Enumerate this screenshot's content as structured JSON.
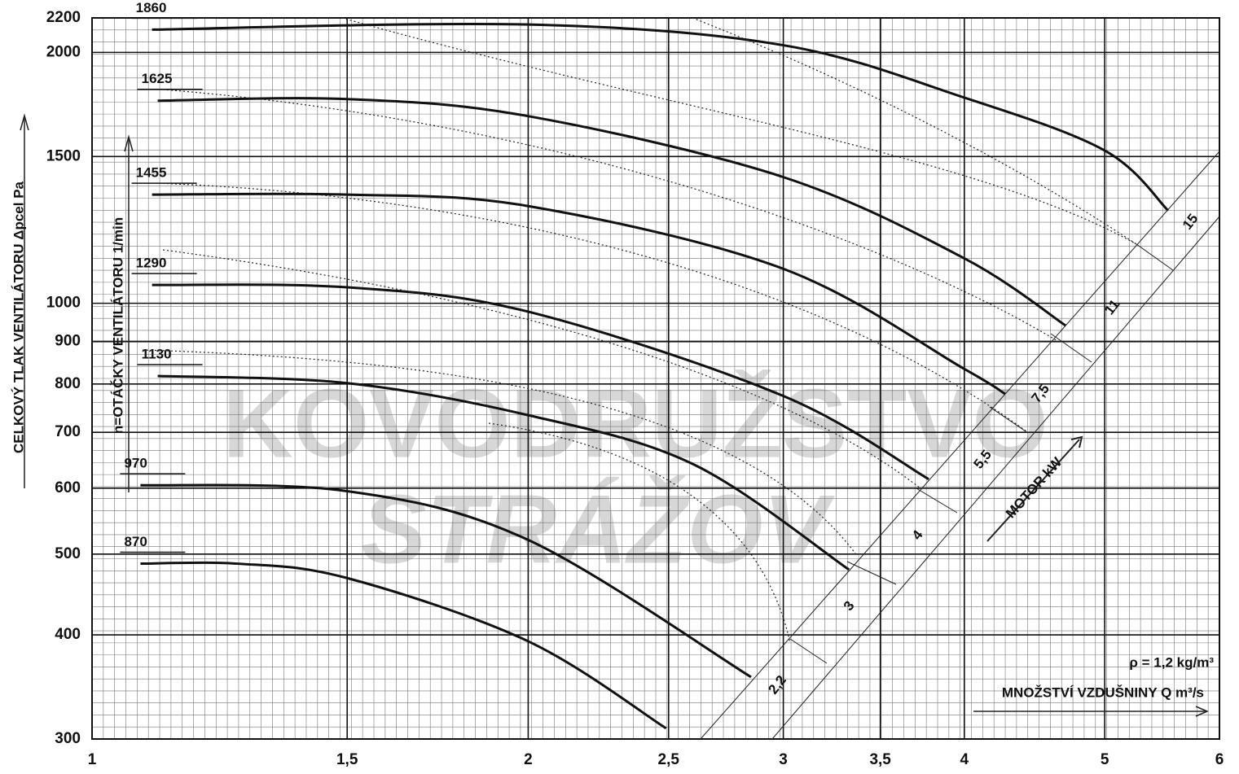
{
  "chart_data": {
    "type": "line",
    "log_x": true,
    "log_y": true,
    "grid": true,
    "y_label": "CELKOVÝ TLAK VENTILÁTORU  Δpcel Pa",
    "speed_label": "n=OTÁČKY VENTILÁTORU 1/min",
    "x_label": "MNOŽSTVÍ VZDUŠNINY Q  m³/s",
    "density_label": "ρ = 1,2 kg/m³",
    "motor_label": "MOTOR kW",
    "motor_sizes": [
      "2,2",
      "3",
      "4",
      "5,5",
      "7,5",
      "11",
      "15"
    ],
    "watermark": [
      "KOVODRUŽSTVO",
      "STRÁŽOV"
    ],
    "xlim": [
      1,
      6
    ],
    "ylim": [
      300,
      2200
    ],
    "xticks": [
      1,
      {
        "value": 1.5,
        "label": "1,5"
      },
      2,
      {
        "value": 2.5,
        "label": "2,5"
      },
      3,
      {
        "value": 3.5,
        "label": "3,5"
      },
      4,
      5,
      6
    ],
    "yticks": [
      300,
      400,
      500,
      600,
      700,
      800,
      900,
      1000,
      1500,
      2000,
      2200
    ],
    "series": [
      {
        "name": "1860",
        "color": "#111111",
        "x": [
          1.1,
          2.0,
          3.0,
          4.0,
          5.0,
          5.53
        ],
        "values": [
          2130,
          2160,
          2040,
          1765,
          1525,
          1292
        ]
      },
      {
        "name": "1625",
        "color": "#111111",
        "x": [
          1.11,
          1.5,
          2.0,
          3.0,
          4.0,
          4.7
        ],
        "values": [
          1750,
          1758,
          1677,
          1417,
          1132,
          940
        ]
      },
      {
        "name": "1455",
        "color": "#111111",
        "x": [
          1.1,
          1.5,
          2.0,
          3.0,
          4.0,
          4.27
        ],
        "values": [
          1350,
          1350,
          1308,
          1100,
          834,
          778
        ]
      },
      {
        "name": "1290",
        "color": "#111111",
        "x": [
          1.1,
          1.5,
          2.0,
          3.0,
          3.78
        ],
        "values": [
          1052,
          1045,
          977,
          774,
          615
        ]
      },
      {
        "name": "1130",
        "color": "#111111",
        "x": [
          1.11,
          1.5,
          2.0,
          2.6,
          3.33
        ],
        "values": [
          818,
          802,
          734,
          641,
          479
        ]
      },
      {
        "name": "970",
        "color": "#111111",
        "x": [
          1.08,
          1.5,
          2.0,
          2.85
        ],
        "values": [
          605,
          595,
          520,
          356
        ]
      },
      {
        "name": "870",
        "color": "#111111",
        "x": [
          1.08,
          1.26,
          1.5,
          2.0,
          2.49
        ],
        "values": [
          487,
          487,
          468,
          393,
          309
        ]
      }
    ]
  }
}
